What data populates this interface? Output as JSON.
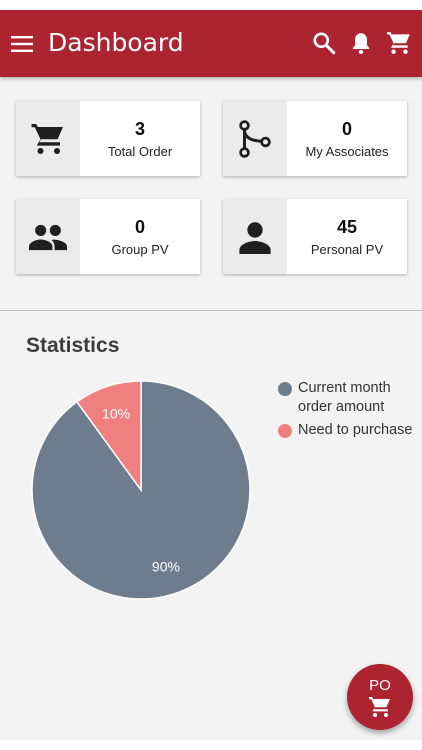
{
  "header": {
    "title": "Dashboard",
    "menu_icon": "menu-icon",
    "actions": [
      "search-icon",
      "bell-icon",
      "cart-icon"
    ]
  },
  "cards": [
    {
      "value": "3",
      "label": "Total Order",
      "icon": "cart-icon"
    },
    {
      "value": "0",
      "label": "My Associates",
      "icon": "network-icon"
    },
    {
      "value": "0",
      "label": "Group PV",
      "icon": "group-icon"
    },
    {
      "value": "45",
      "label": "Personal PV",
      "icon": "person-icon"
    }
  ],
  "statistics": {
    "title": "Statistics"
  },
  "chart_data": {
    "type": "pie",
    "slices": [
      {
        "label": "Current month order amount",
        "value": 90,
        "display": "90%",
        "color": "#6e7d8e"
      },
      {
        "label": "Need to purchase",
        "value": 10,
        "display": "10%",
        "color": "#f08080"
      }
    ],
    "legend_position": "right"
  },
  "fab": {
    "label": "PO",
    "icon": "cart-icon"
  },
  "colors": {
    "primary": "#ab2430",
    "background": "#f3f3f3"
  }
}
